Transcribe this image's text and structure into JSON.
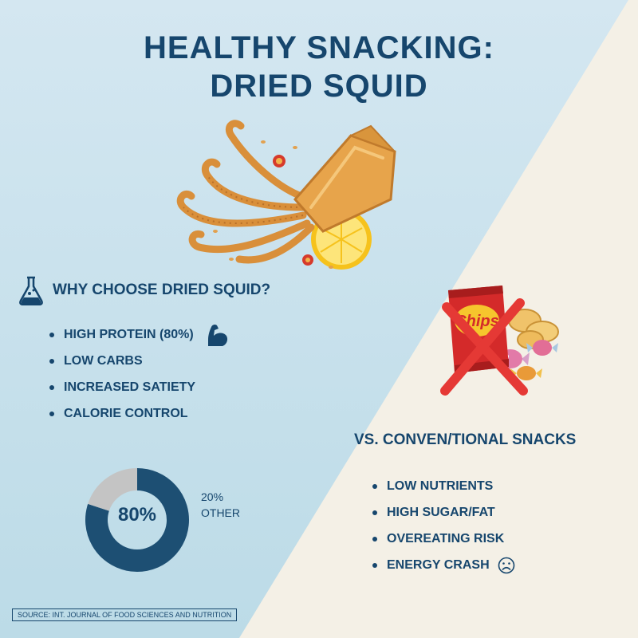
{
  "header": {
    "title_line1": "HEALTHY SNACKING:",
    "title_line2": "DRIED SQUID"
  },
  "benefits": {
    "heading": "WHY CHOOSE DRIED SQUID?",
    "heading_icon": "flask-icon",
    "items": [
      {
        "label": "HIGH PROTEIN (80%)",
        "icon": "flexed-arm-icon"
      },
      {
        "label": "LOW CARBS"
      },
      {
        "label": "INCREASED SATIETY"
      },
      {
        "label": "CALORIE CONTROL"
      }
    ]
  },
  "chart_data": {
    "type": "pie",
    "style": "donut",
    "categories": [
      "Protein",
      "Other"
    ],
    "values": [
      80,
      20
    ],
    "center_label": "80%",
    "other_percent_label": "20%",
    "other_label": "OTHER",
    "colors": [
      "#1d4f73",
      "#c4c4c4"
    ]
  },
  "comparison": {
    "heading": "VS. CONVEN/TIONAL SNACKS",
    "illustration": "crossed-out-chips-and-candy",
    "items": [
      {
        "label": "LOW NUTRIENTS"
      },
      {
        "label": "HIGH SUGAR/FAT"
      },
      {
        "label": "OVEREATING RISK"
      },
      {
        "label": "ENERGY CRASH",
        "icon": "sad-face-icon"
      }
    ]
  },
  "footer": {
    "source": "SOURCE: INT. JOURNAL OF FOOD SCIENCES AND NUTRITION"
  },
  "colors": {
    "primary_text": "#16466d",
    "left_background": "#c8e1ec",
    "right_background": "#f4f0e6",
    "protein_segment": "#1d4f73",
    "other_segment": "#c4c4c4",
    "cross": "#e53935"
  }
}
